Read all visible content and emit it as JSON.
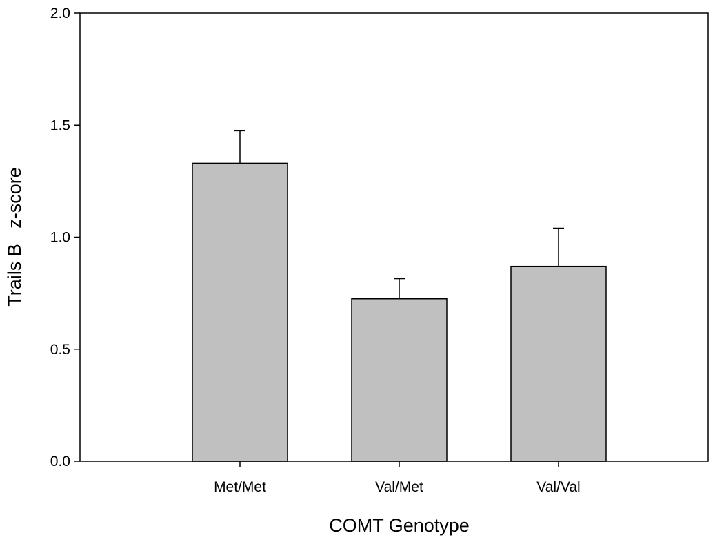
{
  "chart_data": {
    "type": "bar",
    "title": "",
    "xlabel": "COMT Genotype",
    "ylabel": "Trails B   z-score",
    "categories": [
      "Met/Met",
      "Val/Met",
      "Val/Val"
    ],
    "values": [
      1.33,
      0.725,
      0.87
    ],
    "error_upper": [
      1.475,
      0.815,
      1.04
    ],
    "ylim": [
      0,
      2
    ],
    "yticks": [
      0,
      0.5,
      1,
      1.5,
      2
    ],
    "ytick_labels": [
      "0.0",
      "0.5",
      "1.0",
      "1.5",
      "2.0"
    ],
    "grid": false,
    "legend": "none",
    "colors": {
      "bar_fill": "#c0c0c0",
      "bar_stroke": "#000000",
      "axis": "#000000"
    }
  }
}
